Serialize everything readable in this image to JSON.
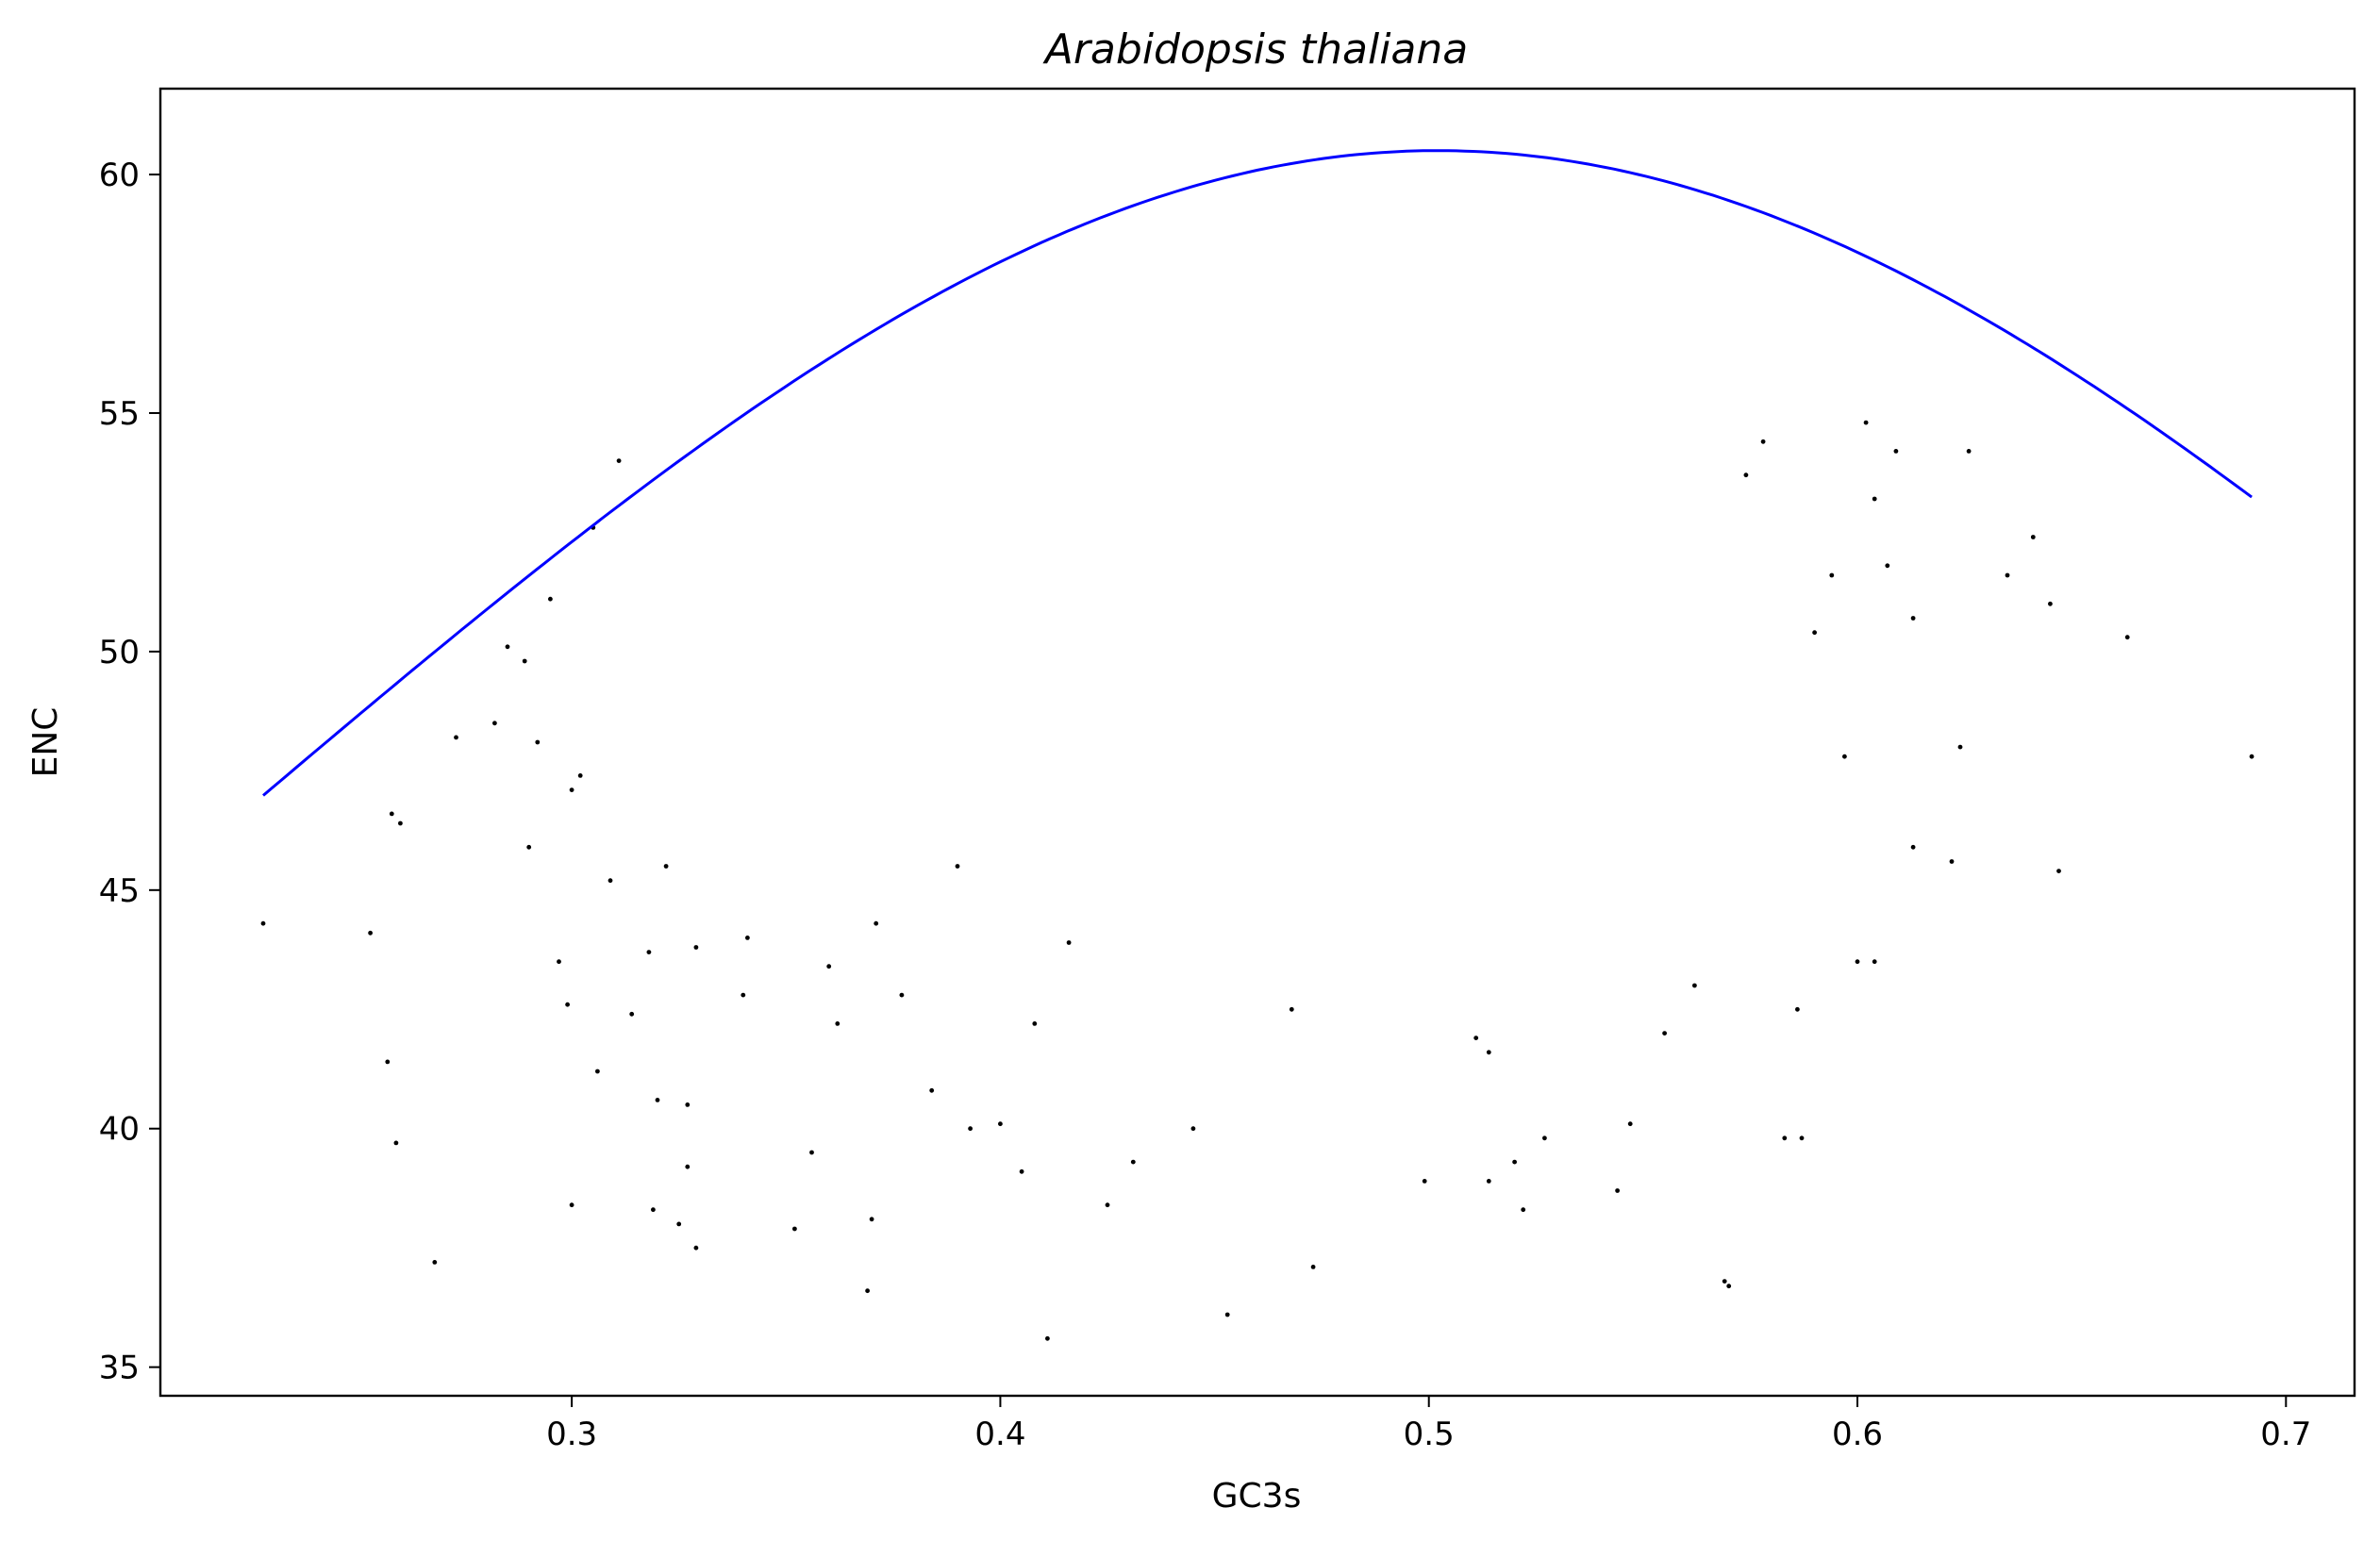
{
  "chart_data": {
    "type": "scatter",
    "title": "Arabidopsis thaliana",
    "xlabel": "GC3s",
    "ylabel": "ENC",
    "xlim": [
      0.204,
      0.716
    ],
    "ylim": [
      34.4,
      61.8
    ],
    "xticks": [
      0.3,
      0.4,
      0.5,
      0.6,
      0.7
    ],
    "xtick_labels": [
      "0.3",
      "0.4",
      "0.5",
      "0.6",
      "0.7"
    ],
    "yticks": [
      35,
      40,
      45,
      50,
      55,
      60
    ],
    "ytick_labels": [
      "35",
      "40",
      "45",
      "50",
      "55",
      "60"
    ],
    "grid": false,
    "legend": "none",
    "colors": {
      "curve": "#0000ff",
      "points": "#000000"
    },
    "series": [
      {
        "kind": "curve",
        "formula": "ENC = 2 + s + 29 / (s^2 + (1 - s)^2)",
        "x_range": [
          0.228,
          0.692
        ]
      },
      {
        "kind": "points",
        "points": [
          [
            0.228,
            44.3
          ],
          [
            0.253,
            44.1
          ],
          [
            0.257,
            41.4
          ],
          [
            0.258,
            46.6
          ],
          [
            0.259,
            39.7
          ],
          [
            0.26,
            46.4
          ],
          [
            0.268,
            37.2
          ],
          [
            0.273,
            48.2
          ],
          [
            0.282,
            48.5
          ],
          [
            0.285,
            50.1
          ],
          [
            0.289,
            49.8
          ],
          [
            0.29,
            45.9
          ],
          [
            0.292,
            48.1
          ],
          [
            0.295,
            51.1
          ],
          [
            0.297,
            43.5
          ],
          [
            0.299,
            42.6
          ],
          [
            0.3,
            38.4
          ],
          [
            0.3,
            47.1
          ],
          [
            0.302,
            47.4
          ],
          [
            0.305,
            52.6
          ],
          [
            0.306,
            41.2
          ],
          [
            0.309,
            45.2
          ],
          [
            0.311,
            54.0
          ],
          [
            0.314,
            42.4
          ],
          [
            0.318,
            43.7
          ],
          [
            0.319,
            38.3
          ],
          [
            0.32,
            40.6
          ],
          [
            0.322,
            45.5
          ],
          [
            0.325,
            38.0
          ],
          [
            0.327,
            39.2
          ],
          [
            0.327,
            40.5
          ],
          [
            0.329,
            37.5
          ],
          [
            0.329,
            43.8
          ],
          [
            0.34,
            42.8
          ],
          [
            0.341,
            44.0
          ],
          [
            0.352,
            37.9
          ],
          [
            0.356,
            39.5
          ],
          [
            0.36,
            43.4
          ],
          [
            0.362,
            42.2
          ],
          [
            0.369,
            36.6
          ],
          [
            0.37,
            38.1
          ],
          [
            0.371,
            44.3
          ],
          [
            0.377,
            42.8
          ],
          [
            0.384,
            40.8
          ],
          [
            0.39,
            45.5
          ],
          [
            0.393,
            40.0
          ],
          [
            0.4,
            40.1
          ],
          [
            0.405,
            39.1
          ],
          [
            0.408,
            42.2
          ],
          [
            0.411,
            35.6
          ],
          [
            0.416,
            43.9
          ],
          [
            0.425,
            38.4
          ],
          [
            0.431,
            39.3
          ],
          [
            0.445,
            40.0
          ],
          [
            0.453,
            36.1
          ],
          [
            0.468,
            42.5
          ],
          [
            0.473,
            37.1
          ],
          [
            0.499,
            38.9
          ],
          [
            0.511,
            41.9
          ],
          [
            0.514,
            38.9
          ],
          [
            0.514,
            41.6
          ],
          [
            0.52,
            39.3
          ],
          [
            0.522,
            38.3
          ],
          [
            0.527,
            39.8
          ],
          [
            0.544,
            38.7
          ],
          [
            0.547,
            40.1
          ],
          [
            0.555,
            42.0
          ],
          [
            0.562,
            43.0
          ],
          [
            0.569,
            36.8
          ],
          [
            0.57,
            36.7
          ],
          [
            0.574,
            53.7
          ],
          [
            0.578,
            54.4
          ],
          [
            0.583,
            39.8
          ],
          [
            0.586,
            42.5
          ],
          [
            0.587,
            39.8
          ],
          [
            0.59,
            50.4
          ],
          [
            0.594,
            51.6
          ],
          [
            0.597,
            47.8
          ],
          [
            0.6,
            43.5
          ],
          [
            0.602,
            54.8
          ],
          [
            0.604,
            53.2
          ],
          [
            0.604,
            43.5
          ],
          [
            0.607,
            51.8
          ],
          [
            0.609,
            54.2
          ],
          [
            0.613,
            50.7
          ],
          [
            0.613,
            45.9
          ],
          [
            0.622,
            45.6
          ],
          [
            0.624,
            48.0
          ],
          [
            0.626,
            54.2
          ],
          [
            0.635,
            51.6
          ],
          [
            0.641,
            52.4
          ],
          [
            0.645,
            51.0
          ],
          [
            0.647,
            45.4
          ],
          [
            0.663,
            50.3
          ],
          [
            0.692,
            47.8
          ]
        ]
      }
    ]
  }
}
